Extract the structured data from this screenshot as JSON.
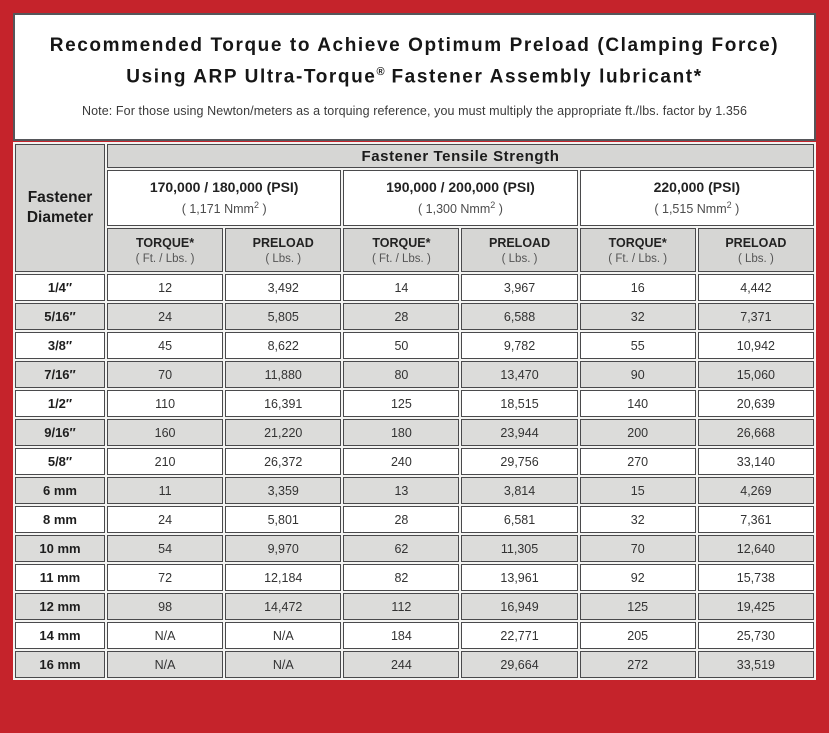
{
  "title": {
    "line1": "Recommended Torque to Achieve Optimum Preload (Clamping Force)",
    "line2_pre": "Using ARP Ultra-Torque",
    "line2_reg": "®",
    "line2_post": " Fastener Assembly lubricant*",
    "note": "Note: For those using Newton/meters as a torquing reference, you must multiply the appropriate ft./lbs. factor by 1.356"
  },
  "table": {
    "corner_line1": "Fastener",
    "corner_line2": "Diameter",
    "tensile_header": "Fastener Tensile Strength",
    "groups": [
      {
        "psi": "170,000 / 180,000 (PSI)",
        "nmm_pre": "( 1,171 Nmm",
        "nmm_sup": "2",
        "nmm_post": " )"
      },
      {
        "psi": "190,000 / 200,000 (PSI)",
        "nmm_pre": "( 1,300 Nmm",
        "nmm_sup": "2",
        "nmm_post": " )"
      },
      {
        "psi": "220,000 (PSI)",
        "nmm_pre": "( 1,515 Nmm",
        "nmm_sup": "2",
        "nmm_post": " )"
      }
    ],
    "col_headers": {
      "torque": "TORQUE*",
      "torque_sub": "( Ft. / Lbs. )",
      "preload": "PRELOAD",
      "preload_sub": "( Lbs. )"
    },
    "rows": [
      {
        "diameter": "1/4″",
        "values": [
          "12",
          "3,492",
          "14",
          "3,967",
          "16",
          "4,442"
        ]
      },
      {
        "diameter": "5/16″",
        "values": [
          "24",
          "5,805",
          "28",
          "6,588",
          "32",
          "7,371"
        ]
      },
      {
        "diameter": "3/8″",
        "values": [
          "45",
          "8,622",
          "50",
          "9,782",
          "55",
          "10,942"
        ]
      },
      {
        "diameter": "7/16″",
        "values": [
          "70",
          "11,880",
          "80",
          "13,470",
          "90",
          "15,060"
        ]
      },
      {
        "diameter": "1/2″",
        "values": [
          "110",
          "16,391",
          "125",
          "18,515",
          "140",
          "20,639"
        ]
      },
      {
        "diameter": "9/16″",
        "values": [
          "160",
          "21,220",
          "180",
          "23,944",
          "200",
          "26,668"
        ]
      },
      {
        "diameter": "5/8″",
        "values": [
          "210",
          "26,372",
          "240",
          "29,756",
          "270",
          "33,140"
        ]
      },
      {
        "diameter": "6 mm",
        "values": [
          "11",
          "3,359",
          "13",
          "3,814",
          "15",
          "4,269"
        ]
      },
      {
        "diameter": "8 mm",
        "values": [
          "24",
          "5,801",
          "28",
          "6,581",
          "32",
          "7,361"
        ]
      },
      {
        "diameter": "10 mm",
        "values": [
          "54",
          "9,970",
          "62",
          "11,305",
          "70",
          "12,640"
        ]
      },
      {
        "diameter": "11 mm",
        "values": [
          "72",
          "12,184",
          "82",
          "13,961",
          "92",
          "15,738"
        ]
      },
      {
        "diameter": "12 mm",
        "values": [
          "98",
          "14,472",
          "112",
          "16,949",
          "125",
          "19,425"
        ]
      },
      {
        "diameter": "14 mm",
        "values": [
          "N/A",
          "N/A",
          "184",
          "22,771",
          "205",
          "25,730"
        ]
      },
      {
        "diameter": "16 mm",
        "values": [
          "N/A",
          "N/A",
          "244",
          "29,664",
          "272",
          "33,519"
        ]
      }
    ]
  },
  "colors": {
    "frame_red": "#c5232b",
    "panel_border": "#55565a",
    "cell_border": "#4a4a4c",
    "alt_row_gray": "#dcdcda",
    "header_gray": "#d6d6d4"
  }
}
